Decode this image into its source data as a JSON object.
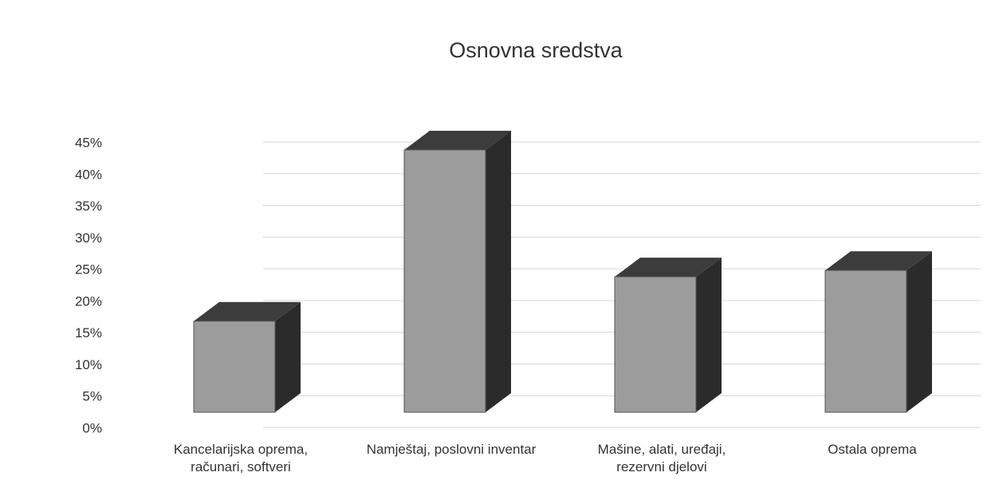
{
  "chart_data": {
    "type": "bar3d",
    "title": "Osnovna sredstva",
    "categories": [
      "Kancelarijska oprema, računari, softveri",
      "Namještaj, poslovni inventar",
      "Mašine, alati, uređaji, rezervni djelovi",
      "Ostala oprema"
    ],
    "values": [
      17,
      44,
      24,
      25
    ],
    "color": "#9c9c9c",
    "ylim": [
      0,
      45
    ],
    "yticks": [
      {
        "value": 0,
        "label": "0%"
      },
      {
        "value": 5,
        "label": "5%"
      },
      {
        "value": 10,
        "label": "10%"
      },
      {
        "value": 15,
        "label": "15%"
      },
      {
        "value": 20,
        "label": "20%"
      },
      {
        "value": 25,
        "label": "25%"
      },
      {
        "value": 30,
        "label": "30%"
      },
      {
        "value": 35,
        "label": "35%"
      },
      {
        "value": 40,
        "label": "40%"
      },
      {
        "value": 45,
        "label": "45%"
      }
    ],
    "grid": true
  }
}
